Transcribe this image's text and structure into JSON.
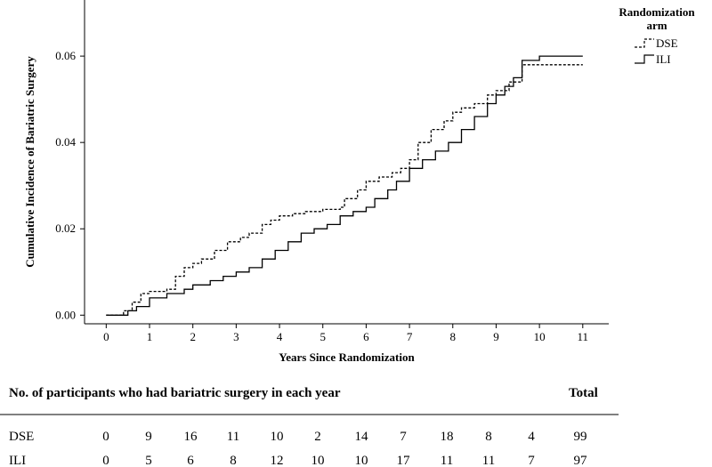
{
  "chart_data": {
    "type": "line",
    "xlabel": "Years Since Randomization",
    "ylabel": "Cumulative Incidence of Bariatric Surgery",
    "xlim": [
      -0.5,
      11.6
    ],
    "ylim": [
      -0.002,
      0.073
    ],
    "x_ticks": [
      0,
      1,
      2,
      3,
      4,
      5,
      6,
      7,
      8,
      9,
      10,
      11
    ],
    "y_ticks": [
      0.0,
      0.02,
      0.04,
      0.06
    ],
    "y_tick_labels": [
      "0.00",
      "0.02",
      "0.04",
      "0.06"
    ],
    "grid": false,
    "legend": {
      "title_line1": "Randomization",
      "title_line2": "arm",
      "placement": "top-right"
    },
    "series": [
      {
        "name": "DSE",
        "style": "dashed",
        "color": "#000000",
        "x": [
          0,
          0.4,
          0.6,
          0.8,
          1.0,
          1.4,
          1.6,
          1.8,
          2.0,
          2.2,
          2.5,
          2.8,
          3.1,
          3.3,
          3.6,
          3.8,
          4.0,
          4.3,
          4.6,
          5.0,
          5.4,
          5.5,
          5.8,
          6.0,
          6.3,
          6.6,
          6.8,
          7.0,
          7.2,
          7.5,
          7.8,
          8.0,
          8.2,
          8.5,
          8.8,
          9.0,
          9.3,
          9.6,
          11.0
        ],
        "y": [
          0.0,
          0.001,
          0.003,
          0.005,
          0.0055,
          0.006,
          0.009,
          0.011,
          0.012,
          0.013,
          0.015,
          0.017,
          0.018,
          0.019,
          0.021,
          0.022,
          0.023,
          0.0235,
          0.024,
          0.0245,
          0.025,
          0.027,
          0.029,
          0.031,
          0.032,
          0.033,
          0.034,
          0.036,
          0.04,
          0.043,
          0.045,
          0.047,
          0.048,
          0.049,
          0.051,
          0.052,
          0.054,
          0.058,
          0.058
        ]
      },
      {
        "name": "ILI",
        "style": "solid",
        "color": "#000000",
        "x": [
          0,
          0.5,
          0.7,
          1.0,
          1.4,
          1.8,
          2.0,
          2.4,
          2.7,
          3.0,
          3.3,
          3.6,
          3.9,
          4.2,
          4.5,
          4.8,
          5.1,
          5.4,
          5.7,
          6.0,
          6.2,
          6.5,
          6.7,
          7.0,
          7.3,
          7.6,
          7.9,
          8.2,
          8.5,
          8.8,
          9.0,
          9.2,
          9.4,
          9.6,
          10.0,
          11.0
        ],
        "y": [
          0.0,
          0.001,
          0.002,
          0.004,
          0.005,
          0.006,
          0.007,
          0.008,
          0.009,
          0.01,
          0.011,
          0.013,
          0.015,
          0.017,
          0.019,
          0.02,
          0.021,
          0.023,
          0.024,
          0.025,
          0.027,
          0.029,
          0.031,
          0.034,
          0.036,
          0.038,
          0.04,
          0.043,
          0.046,
          0.049,
          0.051,
          0.053,
          0.055,
          0.059,
          0.06,
          0.06
        ]
      }
    ],
    "table": {
      "title": "No. of participants who had bariatric surgery in each year",
      "total_label": "Total",
      "rows": [
        {
          "label": "DSE",
          "values": [
            0,
            9,
            16,
            11,
            10,
            2,
            14,
            7,
            18,
            8,
            4
          ],
          "total": 99
        },
        {
          "label": "ILI",
          "values": [
            0,
            5,
            6,
            8,
            12,
            10,
            10,
            17,
            11,
            11,
            7
          ],
          "total": 97
        }
      ]
    }
  }
}
